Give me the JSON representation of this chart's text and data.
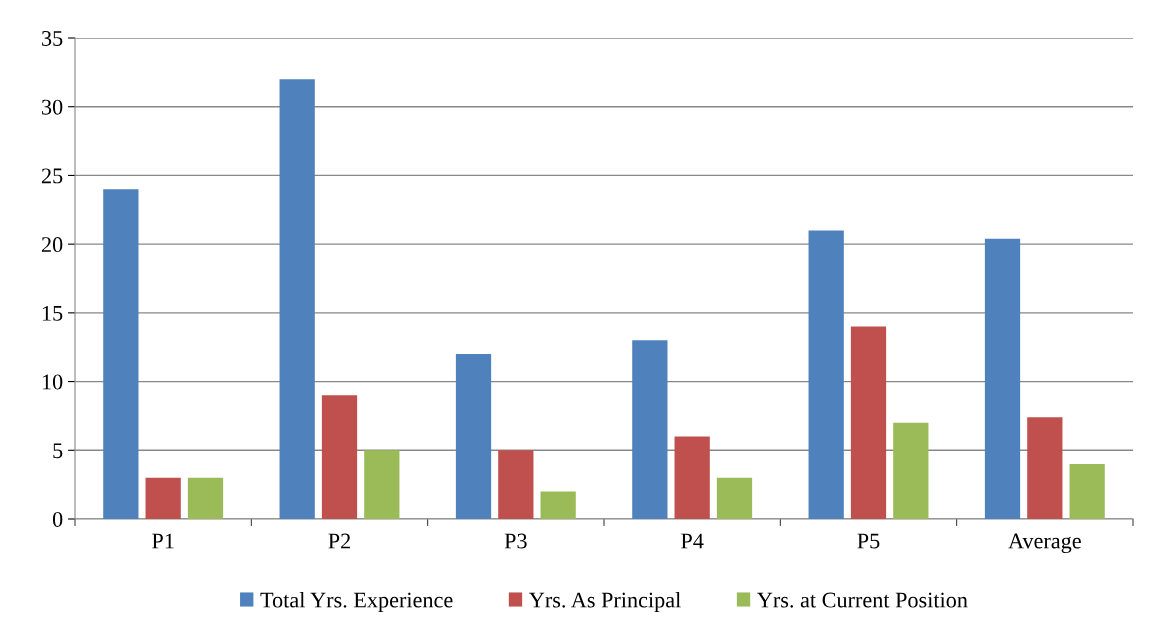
{
  "chart_data": {
    "type": "bar",
    "categories": [
      "P1",
      "P2",
      "P3",
      "P4",
      "P5",
      "Average"
    ],
    "series": [
      {
        "name": "Total Yrs. Experience",
        "color": "#4f81bd",
        "values": [
          24,
          32,
          12,
          13,
          21,
          20.4
        ]
      },
      {
        "name": "Yrs. As Principal",
        "color": "#c0504d",
        "values": [
          3,
          9,
          5,
          6,
          14,
          7.4
        ]
      },
      {
        "name": "Yrs. at Current Position",
        "color": "#9bbb59",
        "values": [
          3,
          5,
          2,
          3,
          7,
          4
        ]
      }
    ],
    "ylim": [
      0,
      35
    ],
    "yticks": [
      0,
      5,
      10,
      15,
      20,
      25,
      30,
      35
    ],
    "grid": "y",
    "legend": "bottom"
  }
}
